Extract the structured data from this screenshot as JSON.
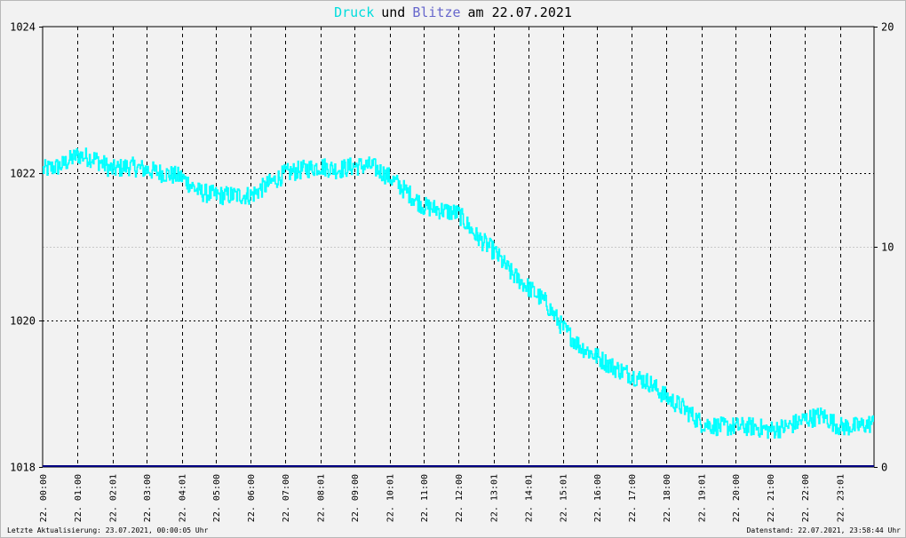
{
  "title": {
    "series1_word": "Druck",
    "joiner": "und",
    "series2_word": "Blitze",
    "date_text": "am 22.07.2021"
  },
  "colors": {
    "pressure": "#00ffff",
    "lightning": "#000080",
    "title_series2": "#6666cc",
    "background": "#f2f2f2"
  },
  "footer": {
    "left": "Letzte Aktualisierung: 23.07.2021, 00:00:05 Uhr",
    "right": "Datenstand: 22.07.2021, 23:58:44 Uhr"
  },
  "chart_data": {
    "type": "line",
    "y_left": {
      "min": 1018,
      "max": 1024,
      "ticks": [
        "1024",
        "1022",
        "1020",
        "1018"
      ]
    },
    "y_right": {
      "min": 0,
      "max": 20,
      "ticks": [
        "20",
        "10",
        "0"
      ]
    },
    "x_ticks": [
      "22. 00:00",
      "22. 01:00",
      "22. 02:01",
      "22. 03:00",
      "22. 04:01",
      "22. 05:00",
      "22. 06:00",
      "22. 07:00",
      "22. 08:01",
      "22. 09:00",
      "22. 10:01",
      "22. 11:00",
      "22. 12:00",
      "22. 13:01",
      "22. 14:01",
      "22. 15:01",
      "22. 16:00",
      "22. 17:00",
      "22. 18:00",
      "22. 19:01",
      "22. 20:00",
      "22. 21:00",
      "22. 22:00",
      "22. 23:01"
    ],
    "x_tick_hours": [
      0,
      1,
      2.017,
      3,
      4.017,
      5,
      6,
      7,
      8.017,
      9,
      10.017,
      11,
      12,
      13.017,
      14.017,
      15.017,
      16,
      17,
      18,
      19.017,
      20,
      21,
      22,
      23.017
    ],
    "grid": true,
    "series": [
      {
        "name": "Druck",
        "axis": "left",
        "x_hours": [
          0,
          0.5,
          1,
          1.5,
          2,
          2.5,
          3,
          3.5,
          4,
          4.5,
          5,
          5.5,
          6,
          6.5,
          7,
          7.5,
          8,
          8.5,
          9,
          9.5,
          10,
          10.5,
          11,
          11.5,
          12,
          12.5,
          13,
          13.5,
          14,
          14.5,
          15,
          15.5,
          16,
          16.5,
          17,
          17.5,
          18,
          18.5,
          19,
          19.5,
          20,
          20.5,
          21,
          21.5,
          22,
          22.5,
          23,
          23.5,
          23.98
        ],
        "values": [
          1022.05,
          1022.1,
          1022.25,
          1022.2,
          1022.05,
          1022.1,
          1022.05,
          1022.0,
          1021.95,
          1021.75,
          1021.7,
          1021.7,
          1021.7,
          1021.85,
          1022.0,
          1022.05,
          1022.1,
          1022.05,
          1022.1,
          1022.1,
          1021.95,
          1021.75,
          1021.55,
          1021.5,
          1021.45,
          1021.15,
          1020.95,
          1020.65,
          1020.45,
          1020.25,
          1019.9,
          1019.65,
          1019.5,
          1019.35,
          1019.25,
          1019.15,
          1018.95,
          1018.8,
          1018.6,
          1018.55,
          1018.55,
          1018.55,
          1018.5,
          1018.55,
          1018.65,
          1018.7,
          1018.55,
          1018.55,
          1018.6
        ]
      },
      {
        "name": "Blitze",
        "axis": "right",
        "x_hours": [
          0,
          24
        ],
        "values": [
          0,
          0
        ]
      }
    ]
  }
}
